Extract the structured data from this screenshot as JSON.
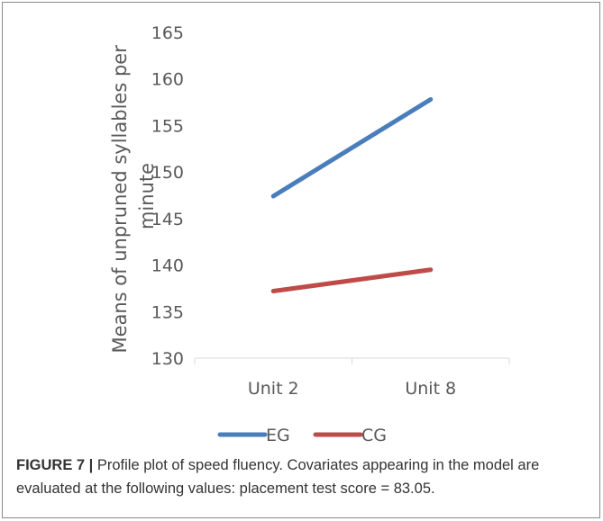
{
  "chart_data": {
    "type": "line",
    "title": "",
    "ylabel_lines": [
      "Means of unpruned syllables per",
      "minute"
    ],
    "xlabel": "",
    "categories": [
      "Unit 2",
      "Unit 8"
    ],
    "ylim": [
      130,
      165
    ],
    "yticks": [
      130,
      135,
      140,
      145,
      150,
      155,
      160,
      165
    ],
    "grid": false,
    "legend_position": "bottom",
    "series": [
      {
        "name": "EG",
        "values": [
          147.4,
          157.8
        ],
        "color": "#4A7EBB"
      },
      {
        "name": "CG",
        "values": [
          137.2,
          139.5
        ],
        "color": "#BE4B48"
      }
    ]
  },
  "caption": {
    "label": "FIGURE 7 |",
    "text": " Profile plot of speed fluency. Covariates appearing in the model are evaluated at the following values: placement test score = 83.05."
  }
}
